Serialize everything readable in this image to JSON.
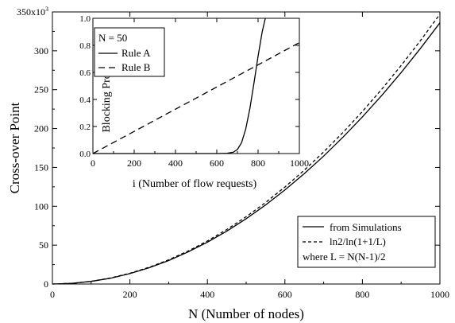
{
  "chart_data": [
    {
      "type": "line",
      "title": "",
      "xlabel": "N (Number of nodes)",
      "ylabel": "Cross-over Point",
      "xlim": [
        0,
        1000
      ],
      "ylim": [
        0,
        350000
      ],
      "xticks": [
        0,
        200,
        400,
        600,
        800,
        1000
      ],
      "xtick_labels": [
        "0",
        "200",
        "400",
        "600",
        "800",
        "1000"
      ],
      "yticks": [
        0,
        50000,
        100000,
        150000,
        200000,
        250000,
        300000,
        350000
      ],
      "ytick_labels": [
        "0",
        "50",
        "100",
        "150",
        "200",
        "250",
        "300"
      ],
      "ytick_top_label": "350x10",
      "ytick_top_exp": "3",
      "grid": false,
      "legend_position": "bottom-right",
      "series": [
        {
          "name": "from Simulations",
          "style": "solid",
          "x": [
            0,
            50,
            100,
            150,
            200,
            250,
            300,
            350,
            400,
            450,
            500,
            550,
            600,
            650,
            700,
            750,
            800,
            850,
            900,
            950,
            1000
          ],
          "y": [
            0,
            900,
            3400,
            7500,
            13400,
            21000,
            30200,
            41200,
            53800,
            68000,
            84000,
            101600,
            121000,
            142000,
            164600,
            189000,
            215000,
            242600,
            272000,
            303200,
            336000
          ]
        },
        {
          "name": "ln2/ln(1+1/L)",
          "style": "dashed",
          "x": [
            0,
            50,
            100,
            150,
            200,
            250,
            300,
            350,
            400,
            450,
            500,
            550,
            600,
            650,
            700,
            750,
            800,
            850,
            900,
            950,
            1000
          ],
          "y": [
            0,
            850,
            3430,
            7740,
            13790,
            21580,
            31100,
            42370,
            55370,
            70110,
            86590,
            104800,
            124760,
            146460,
            169900,
            195080,
            222000,
            250670,
            281080,
            313240,
            347140
          ]
        }
      ],
      "legend_extra": "where L = N(N-1)/2"
    },
    {
      "type": "line",
      "title": "",
      "xlabel": "i (Number of flow requests)",
      "ylabel": "Blocking Probability",
      "xlim": [
        0,
        1000
      ],
      "ylim": [
        0,
        1.0
      ],
      "xticks": [
        0,
        200,
        400,
        600,
        800,
        1000
      ],
      "xtick_labels": [
        "0",
        "200",
        "400",
        "600",
        "800",
        "1000"
      ],
      "yticks": [
        0,
        0.2,
        0.4,
        0.6,
        0.8,
        1.0
      ],
      "ytick_labels": [
        "0.0",
        "0.2",
        "0.4",
        "0.6",
        "0.8",
        "1.0"
      ],
      "grid": false,
      "legend_position": "top-left",
      "legend_title": "N = 50",
      "series": [
        {
          "name": "Rule A",
          "style": "solid",
          "x": [
            0,
            600,
            650,
            680,
            700,
            720,
            740,
            760,
            780,
            800,
            820,
            835
          ],
          "y": [
            0,
            0,
            0.002,
            0.01,
            0.03,
            0.08,
            0.18,
            0.33,
            0.52,
            0.72,
            0.9,
            1.0
          ]
        },
        {
          "name": "Rule B",
          "style": "dashed",
          "x": [
            0,
            1000
          ],
          "y": [
            0,
            0.82
          ]
        }
      ]
    }
  ]
}
